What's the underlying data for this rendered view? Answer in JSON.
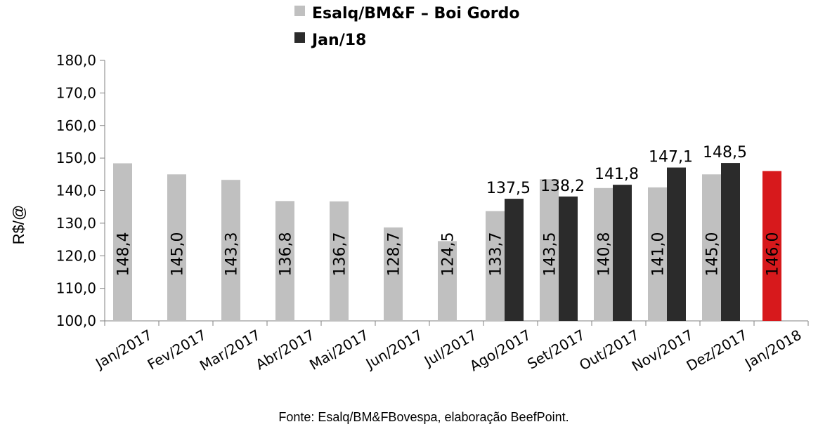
{
  "chart_data": {
    "type": "bar",
    "title": "",
    "xlabel": "",
    "ylabel": "R$/@",
    "ylim": [
      100,
      180
    ],
    "ytick_step": 10,
    "ytick_labels": [
      "100,0",
      "110,0",
      "120,0",
      "130,0",
      "140,0",
      "150,0",
      "160,0",
      "170,0",
      "180,0"
    ],
    "categories": [
      "Jan/2017",
      "Fev/2017",
      "Mar/2017",
      "Abr/2017",
      "Mai/2017",
      "Jun/2017",
      "Jul/2017",
      "Ago/2017",
      "Set/2017",
      "Out/2017",
      "Nov/2017",
      "Dez/2017",
      "Jan/2018"
    ],
    "series": [
      {
        "name": "Esalq/BM&F – Boi Gordo",
        "color": "#c0c0c0",
        "values": [
          148.4,
          145.0,
          143.3,
          136.8,
          136.7,
          128.7,
          124.5,
          133.7,
          143.5,
          140.8,
          141.0,
          145.0,
          146.0
        ],
        "labels": [
          "148,4",
          "145,0",
          "143,3",
          "136,8",
          "136,7",
          "128,7",
          "124,5",
          "133,7",
          "143,5",
          "140,8",
          "141,0",
          "145,0",
          "146,0"
        ],
        "highlight": {
          "index": 12,
          "color": "#d7191c"
        }
      },
      {
        "name": "Jan/18",
        "color": "#2b2b2b",
        "values": [
          null,
          null,
          null,
          null,
          null,
          null,
          null,
          137.5,
          138.2,
          141.8,
          147.1,
          148.5,
          null
        ],
        "labels": [
          "",
          "",
          "",
          "",
          "",
          "",
          "",
          "137,5",
          "138,2",
          "141,8",
          "147,1",
          "148,5",
          ""
        ]
      }
    ],
    "legend_position": "top",
    "grid": false,
    "source": "Fonte: Esalq/BM&FBovespa, elaboração BeefPoint."
  }
}
